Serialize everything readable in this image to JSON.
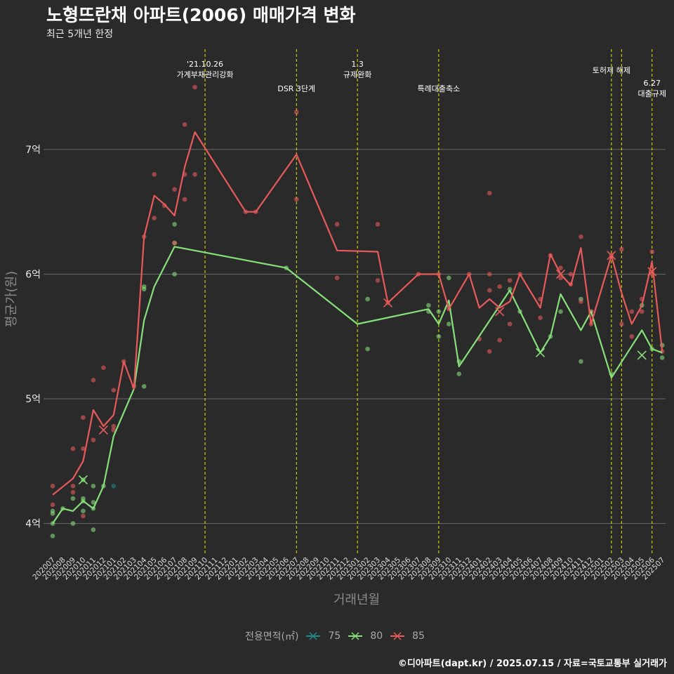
{
  "title": "노형뜨란채 아파트(2006) 매매가격 변화",
  "subtitle": "최근 5개년 한정",
  "caption": "©디아파트(dapt.kr) / 2025.07.15 / 자료=국토교통부 실거래가",
  "colors": {
    "background": "#2b2a2b",
    "grid": "#6b6b6b",
    "event_line": "#e8e800",
    "s75": "#1f8a8a",
    "s80": "#86e07a",
    "s85": "#e85a5a"
  },
  "chart_data": {
    "type": "line",
    "xlabel": "거래년월",
    "ylabel": "평균가(원)",
    "ylim": [
      3.75,
      7.85
    ],
    "yticks": [
      {
        "v": 4,
        "label": "4억"
      },
      {
        "v": 5,
        "label": "5억"
      },
      {
        "v": 6,
        "label": "6억"
      },
      {
        "v": 7,
        "label": "7억"
      }
    ],
    "x": [
      "202007",
      "202008",
      "202009",
      "202010",
      "202011",
      "202012",
      "202101",
      "202102",
      "202103",
      "202104",
      "202105",
      "202106",
      "202107",
      "202108",
      "202109",
      "202110",
      "202111",
      "202112",
      "202201",
      "202202",
      "202203",
      "202204",
      "202205",
      "202206",
      "202207",
      "202208",
      "202209",
      "202210",
      "202211",
      "202212",
      "202301",
      "202302",
      "202303",
      "202304",
      "202305",
      "202306",
      "202307",
      "202308",
      "202309",
      "202310",
      "202311",
      "202312",
      "202401",
      "202402",
      "202403",
      "202404",
      "202405",
      "202406",
      "202407",
      "202408",
      "202409",
      "202410",
      "202411",
      "202412",
      "202501",
      "202502",
      "202503",
      "202504",
      "202505",
      "202506",
      "202507"
    ],
    "legend_title": "전용면적(㎡)",
    "series": [
      {
        "name": "75",
        "color": "#1f8a8a",
        "points": [
          [
            6,
            4.3
          ]
        ],
        "line": [],
        "marks": []
      },
      {
        "name": "80",
        "color": "#86e07a",
        "points": [
          [
            0,
            4.0
          ],
          [
            0,
            4.08
          ],
          [
            0,
            4.1
          ],
          [
            0,
            3.9
          ],
          [
            1,
            4.12
          ],
          [
            2,
            4.0
          ],
          [
            2,
            4.2
          ],
          [
            3,
            4.35
          ],
          [
            3,
            4.2
          ],
          [
            3,
            4.18
          ],
          [
            3,
            4.1
          ],
          [
            4,
            4.12
          ],
          [
            4,
            4.3
          ],
          [
            4,
            4.17
          ],
          [
            4,
            3.95
          ],
          [
            5,
            4.3
          ],
          [
            9,
            5.1
          ],
          [
            9,
            5.88
          ],
          [
            9,
            5.9
          ],
          [
            12,
            6.4
          ],
          [
            12,
            6.25
          ],
          [
            12,
            6.0
          ],
          [
            23,
            6.05
          ],
          [
            31,
            5.8
          ],
          [
            31,
            5.4
          ],
          [
            37,
            5.75
          ],
          [
            37,
            5.7
          ],
          [
            38,
            5.5
          ],
          [
            38,
            5.7
          ],
          [
            39,
            5.97
          ],
          [
            39,
            5.6
          ],
          [
            40,
            5.2
          ],
          [
            40,
            5.3
          ],
          [
            45,
            5.88
          ],
          [
            46,
            5.7
          ],
          [
            49,
            5.5
          ],
          [
            50,
            5.7
          ],
          [
            52,
            5.8
          ],
          [
            52,
            5.3
          ],
          [
            53,
            5.7
          ],
          [
            55,
            5.2
          ],
          [
            58,
            5.75
          ],
          [
            59,
            5.4
          ],
          [
            60,
            5.33
          ],
          [
            60,
            5.43
          ]
        ],
        "line": [
          [
            0,
            4.0
          ],
          [
            1,
            4.12
          ],
          [
            2,
            4.1
          ],
          [
            3,
            4.18
          ],
          [
            4,
            4.12
          ],
          [
            5,
            4.3
          ],
          [
            6,
            4.7
          ],
          [
            8,
            5.08
          ],
          [
            9,
            5.63
          ],
          [
            10,
            5.9
          ],
          [
            12,
            6.22
          ],
          [
            23,
            6.05
          ],
          [
            30,
            5.6
          ],
          [
            37,
            5.72
          ],
          [
            38,
            5.6
          ],
          [
            39,
            5.79
          ],
          [
            40,
            5.26
          ],
          [
            45,
            5.87
          ],
          [
            48,
            5.37
          ],
          [
            49,
            5.5
          ],
          [
            50,
            5.84
          ],
          [
            52,
            5.55
          ],
          [
            53,
            5.7
          ],
          [
            55,
            5.17
          ],
          [
            58,
            5.55
          ],
          [
            59,
            5.4
          ],
          [
            60,
            5.37
          ]
        ],
        "marks": [
          [
            3,
            4.35
          ],
          [
            48,
            5.37
          ],
          [
            58,
            5.35
          ]
        ]
      },
      {
        "name": "85",
        "color": "#e85a5a",
        "points": [
          [
            0,
            4.3
          ],
          [
            0,
            4.15
          ],
          [
            2,
            4.3
          ],
          [
            2,
            4.25
          ],
          [
            2,
            4.6
          ],
          [
            3,
            4.6
          ],
          [
            3,
            4.85
          ],
          [
            3,
            4.06
          ],
          [
            4,
            4.67
          ],
          [
            4,
            5.15
          ],
          [
            5,
            5.25
          ],
          [
            6,
            4.75
          ],
          [
            6,
            4.78
          ],
          [
            6,
            5.07
          ],
          [
            7,
            5.3
          ],
          [
            8,
            5.1
          ],
          [
            9,
            6.3
          ],
          [
            10,
            6.45
          ],
          [
            10,
            6.8
          ],
          [
            11,
            6.55
          ],
          [
            12,
            6.25
          ],
          [
            12,
            6.68
          ],
          [
            13,
            7.2
          ],
          [
            13,
            6.6
          ],
          [
            13,
            6.8
          ],
          [
            14,
            6.8
          ],
          [
            14,
            7.5
          ],
          [
            19,
            6.5
          ],
          [
            20,
            6.5
          ],
          [
            24,
            6.6
          ],
          [
            24,
            7.3
          ],
          [
            28,
            6.4
          ],
          [
            28,
            5.97
          ],
          [
            32,
            6.4
          ],
          [
            32,
            5.95
          ],
          [
            33,
            5.77
          ],
          [
            36,
            6.0
          ],
          [
            38,
            6.0
          ],
          [
            39,
            5.72
          ],
          [
            41,
            6.0
          ],
          [
            42,
            5.48
          ],
          [
            43,
            6.0
          ],
          [
            43,
            5.38
          ],
          [
            43,
            5.87
          ],
          [
            43,
            6.65
          ],
          [
            44,
            5.47
          ],
          [
            44,
            5.9
          ],
          [
            45,
            5.95
          ],
          [
            45,
            5.6
          ],
          [
            46,
            6.0
          ],
          [
            48,
            5.65
          ],
          [
            48,
            5.8
          ],
          [
            49,
            6.15
          ],
          [
            50,
            6.05
          ],
          [
            50,
            5.97
          ],
          [
            51,
            6.0
          ],
          [
            51,
            5.92
          ],
          [
            52,
            6.3
          ],
          [
            52,
            5.78
          ],
          [
            53,
            5.6
          ],
          [
            53,
            5.7
          ],
          [
            55,
            6.15
          ],
          [
            56,
            6.2
          ],
          [
            56,
            5.6
          ],
          [
            57,
            5.7
          ],
          [
            57,
            5.5
          ],
          [
            58,
            5.7
          ],
          [
            58,
            5.8
          ],
          [
            59,
            6.18
          ],
          [
            59,
            6.0
          ],
          [
            60,
            5.38
          ]
        ],
        "line": [
          [
            0,
            4.23
          ],
          [
            2,
            4.36
          ],
          [
            3,
            4.5
          ],
          [
            4,
            4.91
          ],
          [
            5,
            4.78
          ],
          [
            6,
            4.87
          ],
          [
            7,
            5.3
          ],
          [
            8,
            5.08
          ],
          [
            9,
            6.3
          ],
          [
            10,
            6.63
          ],
          [
            11,
            6.56
          ],
          [
            12,
            6.47
          ],
          [
            13,
            6.86
          ],
          [
            14,
            7.14
          ],
          [
            19,
            6.5
          ],
          [
            20,
            6.5
          ],
          [
            24,
            6.96
          ],
          [
            28,
            6.19
          ],
          [
            32,
            6.18
          ],
          [
            33,
            5.77
          ],
          [
            36,
            6.0
          ],
          [
            38,
            6.0
          ],
          [
            39,
            5.72
          ],
          [
            41,
            6.0
          ],
          [
            42,
            5.73
          ],
          [
            43,
            5.8
          ],
          [
            44,
            5.73
          ],
          [
            45,
            5.78
          ],
          [
            46,
            6.0
          ],
          [
            48,
            5.73
          ],
          [
            49,
            6.16
          ],
          [
            50,
            6.0
          ],
          [
            51,
            5.91
          ],
          [
            52,
            6.21
          ],
          [
            53,
            5.6
          ],
          [
            55,
            6.15
          ],
          [
            56,
            5.85
          ],
          [
            57,
            5.6
          ],
          [
            58,
            5.75
          ],
          [
            59,
            6.1
          ],
          [
            60,
            5.38
          ]
        ],
        "marks": [
          [
            5,
            4.75
          ],
          [
            33,
            5.77
          ],
          [
            44,
            5.7
          ],
          [
            50,
            6.0
          ],
          [
            55,
            6.15
          ],
          [
            59,
            6.02
          ]
        ]
      }
    ],
    "events": [
      {
        "x": 15,
        "lines": [
          "'21.10.26",
          "가계부채관리강화"
        ],
        "level": 0
      },
      {
        "x": 24,
        "lines": [
          "DSR 3단계"
        ],
        "level": 2
      },
      {
        "x": 30,
        "lines": [
          "1.3",
          "규제완화"
        ],
        "level": 0
      },
      {
        "x": 38,
        "lines": [
          "특례대출축소"
        ],
        "level": 2
      },
      {
        "x": 55,
        "lines": [
          "토허제 해제"
        ],
        "level": 1
      },
      {
        "x": 56,
        "lines": [],
        "level": 0
      },
      {
        "x": 59,
        "lines": [
          "6.27",
          "대출규제"
        ],
        "level": 3
      }
    ]
  }
}
